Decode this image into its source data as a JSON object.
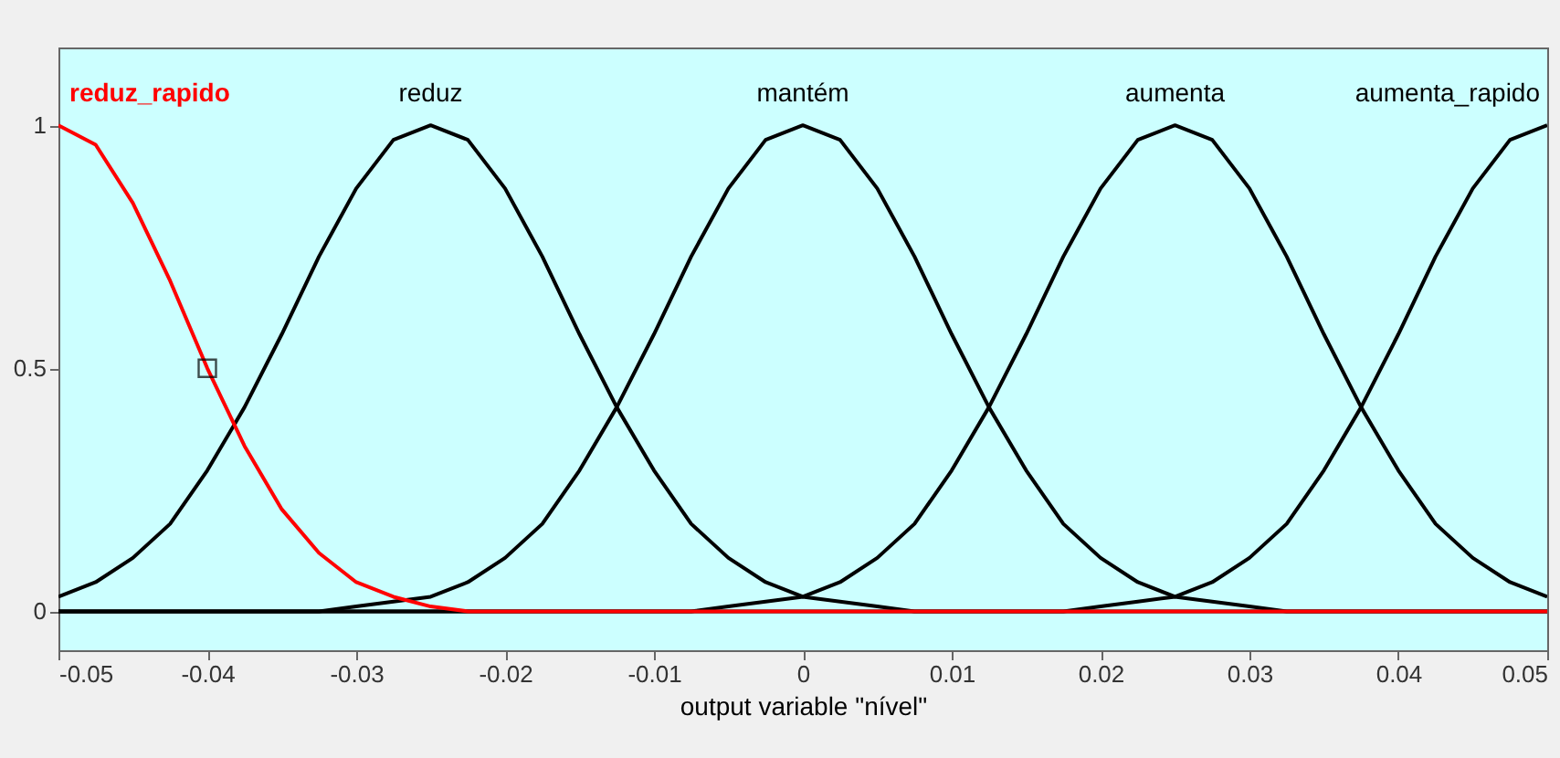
{
  "chart_data": {
    "type": "line",
    "xlabel": "output variable \"nível\"",
    "x": [
      -0.05,
      -0.0475,
      -0.045,
      -0.0425,
      -0.04,
      -0.0375,
      -0.035,
      -0.0325,
      -0.03,
      -0.0275,
      -0.025,
      -0.0225,
      -0.02,
      -0.0175,
      -0.015,
      -0.0125,
      -0.01,
      -0.0075,
      -0.005,
      -0.0025,
      0,
      0.0025,
      0.005,
      0.0075,
      0.01,
      0.0125,
      0.015,
      0.0175,
      0.02,
      0.0225,
      0.025,
      0.0275,
      0.03,
      0.0325,
      0.035,
      0.0375,
      0.04,
      0.0425,
      0.045,
      0.0475,
      0.05
    ],
    "series": [
      {
        "name": "reduz",
        "color": "#000000",
        "values": [
          0.03,
          0.06,
          0.11,
          0.18,
          0.29,
          0.42,
          0.57,
          0.73,
          0.87,
          0.97,
          1,
          0.97,
          0.87,
          0.73,
          0.57,
          0.42,
          0.29,
          0.18,
          0.11,
          0.06,
          0.03,
          0.02,
          0.01,
          0,
          0,
          0,
          0,
          0,
          0,
          0,
          0,
          0,
          0,
          0,
          0,
          0,
          0,
          0,
          0,
          0,
          0
        ]
      },
      {
        "name": "mantém",
        "color": "#000000",
        "values": [
          0,
          0,
          0,
          0,
          0,
          0,
          0,
          0,
          0.01,
          0.02,
          0.03,
          0.06,
          0.11,
          0.18,
          0.29,
          0.42,
          0.57,
          0.73,
          0.87,
          0.97,
          1,
          0.97,
          0.87,
          0.73,
          0.57,
          0.42,
          0.29,
          0.18,
          0.11,
          0.06,
          0.03,
          0.02,
          0.01,
          0,
          0,
          0,
          0,
          0,
          0,
          0,
          0
        ]
      },
      {
        "name": "aumenta",
        "color": "#000000",
        "values": [
          0,
          0,
          0,
          0,
          0,
          0,
          0,
          0,
          0,
          0,
          0,
          0,
          0,
          0,
          0,
          0,
          0,
          0,
          0.01,
          0.02,
          0.03,
          0.06,
          0.11,
          0.18,
          0.29,
          0.42,
          0.57,
          0.73,
          0.87,
          0.97,
          1,
          0.97,
          0.87,
          0.73,
          0.57,
          0.42,
          0.29,
          0.18,
          0.11,
          0.06,
          0.03
        ]
      },
      {
        "name": "aumenta_rapido",
        "color": "#000000",
        "values": [
          0,
          0,
          0,
          0,
          0,
          0,
          0,
          0,
          0,
          0,
          0,
          0,
          0,
          0,
          0,
          0,
          0,
          0,
          0,
          0,
          0,
          0,
          0,
          0,
          0,
          0,
          0,
          0,
          0.01,
          0.02,
          0.03,
          0.06,
          0.11,
          0.18,
          0.29,
          0.42,
          0.57,
          0.73,
          0.87,
          0.97,
          1
        ]
      },
      {
        "name": "reduz_rapido",
        "color": "#ff0000",
        "values": [
          1,
          0.96,
          0.84,
          0.68,
          0.5,
          0.34,
          0.21,
          0.12,
          0.06,
          0.03,
          0.01,
          0,
          0,
          0,
          0,
          0,
          0,
          0,
          0,
          0,
          0,
          0,
          0,
          0,
          0,
          0,
          0,
          0,
          0,
          0,
          0,
          0,
          0,
          0,
          0,
          0,
          0,
          0,
          0,
          0,
          0
        ]
      },
      {
        "type": "scatter",
        "marker": "square",
        "color": "#000000",
        "x": [
          -0.04
        ],
        "values": [
          0.5
        ]
      }
    ],
    "xlim": [
      -0.05,
      0.05
    ],
    "xticks": [
      -0.05,
      -0.04,
      -0.03,
      -0.02,
      -0.01,
      0,
      0.01,
      0.02,
      0.03,
      0.04,
      0.05
    ],
    "ylim": [
      -0.08,
      1.16
    ],
    "yticks": [
      0,
      0.5,
      1
    ],
    "grid": false,
    "marker": "none",
    "line_style": "solid"
  }
}
